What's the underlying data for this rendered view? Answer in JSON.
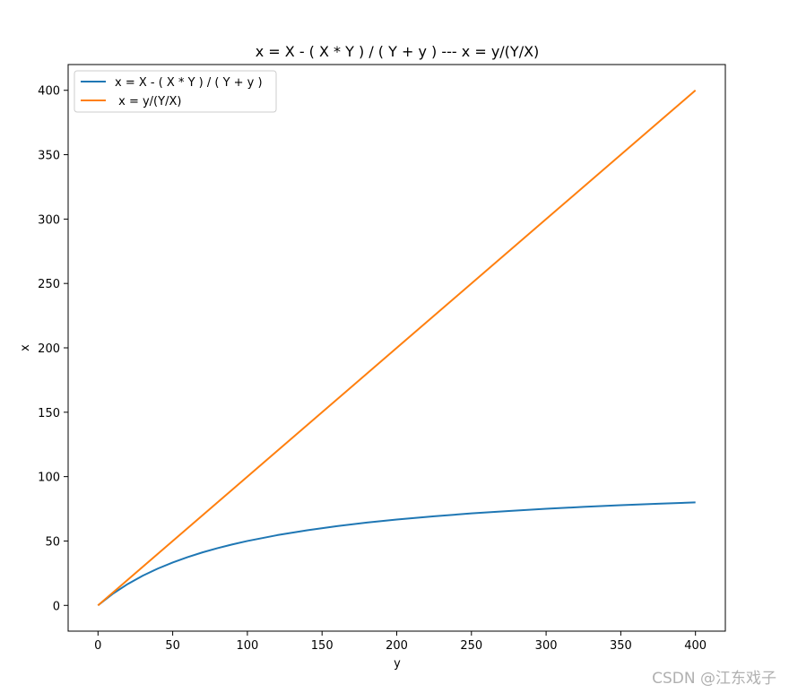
{
  "chart_data": {
    "type": "line",
    "title": "x = X - ( X * Y ) / ( Y + y ) --- x = y/(Y/X)",
    "xlabel": "y",
    "ylabel": "x",
    "xlim": [
      -20,
      420
    ],
    "ylim": [
      -20,
      420
    ],
    "xticks": [
      0,
      50,
      100,
      150,
      200,
      250,
      300,
      350,
      400
    ],
    "yticks": [
      0,
      50,
      100,
      150,
      200,
      250,
      300,
      350,
      400
    ],
    "grid": false,
    "legend_position": "top-left",
    "series": [
      {
        "name": "x = X - ( X * Y ) / ( Y + y )",
        "color": "#1f77b4",
        "x": [
          0,
          10,
          20,
          30,
          40,
          50,
          60,
          70,
          80,
          90,
          100,
          120,
          140,
          160,
          180,
          200,
          225,
          250,
          275,
          300,
          325,
          350,
          375,
          400
        ],
        "values": [
          0,
          9.09,
          16.67,
          23.08,
          28.57,
          33.33,
          37.5,
          41.18,
          44.44,
          47.37,
          50,
          54.55,
          58.33,
          61.54,
          64.29,
          66.67,
          69.23,
          71.43,
          73.33,
          75,
          76.47,
          77.78,
          78.95,
          80
        ]
      },
      {
        "name": " x = y/(Y/X)",
        "color": "#ff7f0e",
        "x": [
          0,
          400
        ],
        "values": [
          0,
          400
        ]
      }
    ]
  },
  "watermark": "CSDN @江东戏子"
}
